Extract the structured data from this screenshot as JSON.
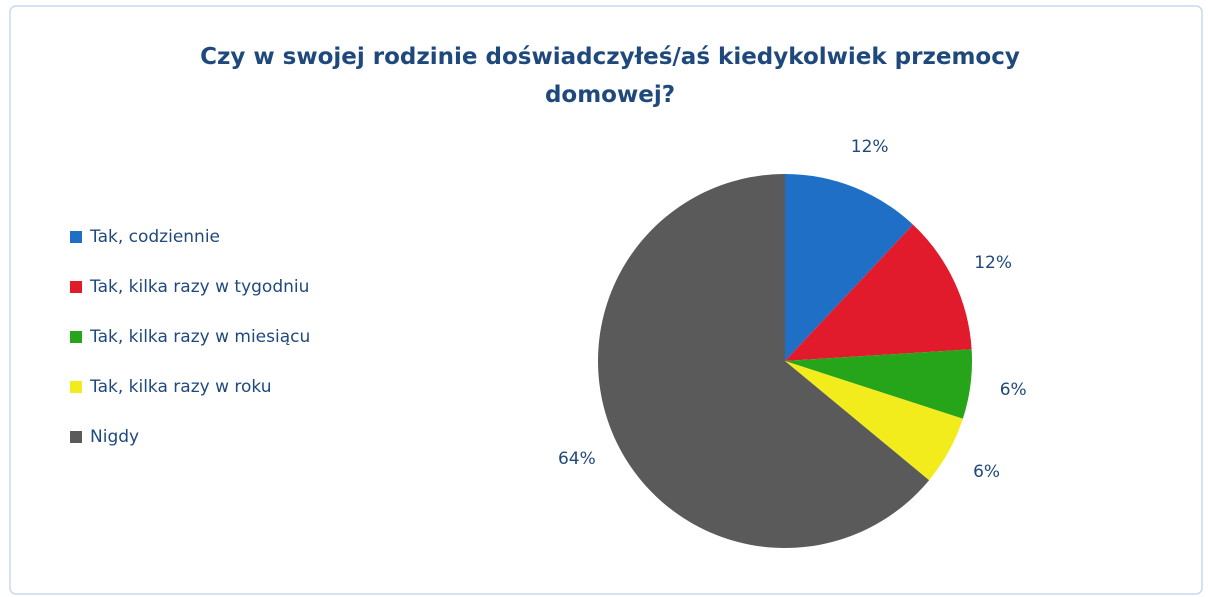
{
  "chart_data": {
    "type": "pie",
    "title": "Czy w swojej rodzinie doświadczyłeś/aś kiedykolwiek przemocy domowej?",
    "categories": [
      "Tak, codziennie",
      "Tak, kilka razy w tygodniu",
      "Tak, kilka razy w miesiącu",
      "Tak, kilka razy w roku",
      "Nigdy"
    ],
    "values": [
      12,
      12,
      6,
      6,
      64
    ],
    "value_labels": [
      "12%",
      "12%",
      "6%",
      "6%",
      "64%"
    ],
    "colors": [
      "#1f6fc6",
      "#e11a2c",
      "#27a51a",
      "#f3ec1d",
      "#5a5a5a"
    ],
    "legend": "left"
  }
}
